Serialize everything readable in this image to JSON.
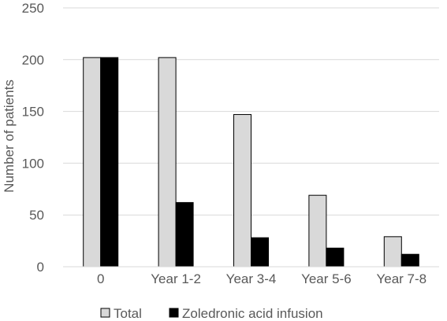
{
  "chart_data": {
    "type": "bar",
    "title": "",
    "xlabel": "",
    "ylabel": "Number of patients",
    "ylim": [
      0,
      250
    ],
    "yticks": [
      0,
      50,
      100,
      150,
      200,
      250
    ],
    "grid": true,
    "legend_position": "bottom",
    "categories": [
      "0",
      "Year 1-2",
      "Year 3-4",
      "Year 5-6",
      "Year 7-8"
    ],
    "series": [
      {
        "name": "Total",
        "values": [
          202,
          202,
          147,
          69,
          29
        ],
        "color": "#d9d9d9",
        "stroke": "#000000"
      },
      {
        "name": "Zoledronic acid infusion",
        "values": [
          202,
          62,
          28,
          18,
          12
        ],
        "color": "#000000",
        "stroke": "#000000"
      }
    ]
  }
}
